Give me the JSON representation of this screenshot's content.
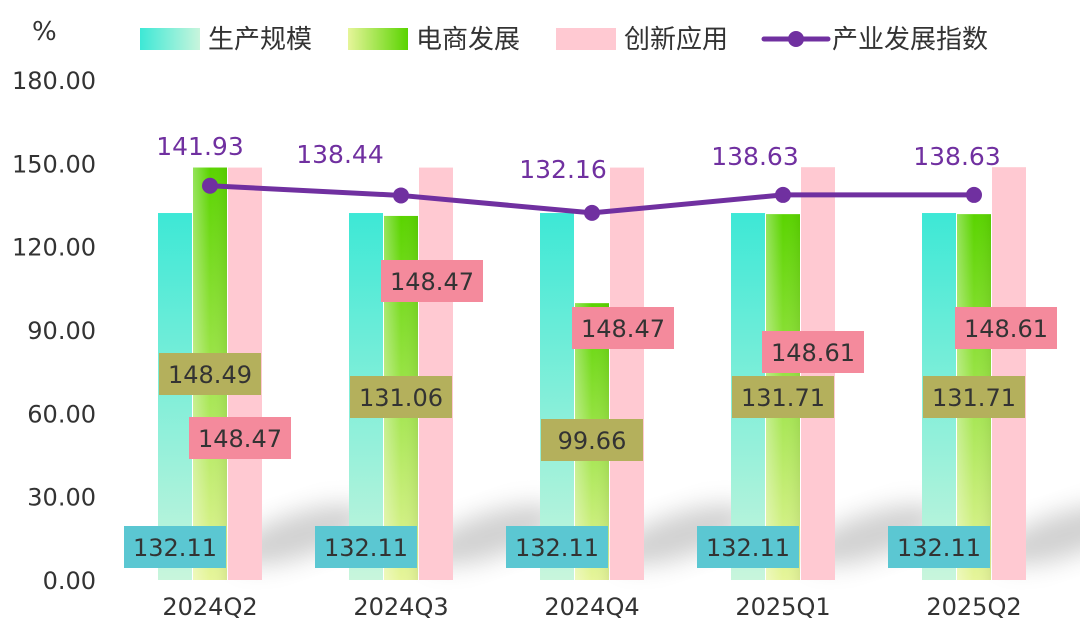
{
  "chart_data": {
    "type": "bar",
    "unit": "%",
    "categories": [
      "2024Q2",
      "2024Q3",
      "2024Q4",
      "2025Q1",
      "2025Q2"
    ],
    "ylim": [
      0,
      180
    ],
    "yticks": [
      "0.00",
      "30.00",
      "60.00",
      "90.00",
      "120.00",
      "150.00",
      "180.00"
    ],
    "legend_position": "top",
    "series": [
      {
        "name": "生产规模",
        "kind": "bar",
        "color_top": "#3de8d6",
        "color_bottom": "#c8f5dc",
        "label_bg": "#5bc7d2",
        "values": [
          132.11,
          132.11,
          132.11,
          132.11,
          132.11
        ],
        "labels": [
          "132.11",
          "132.11",
          "132.11",
          "132.11",
          "132.11"
        ]
      },
      {
        "name": "电商发展",
        "kind": "bar",
        "color_top": "#5ad400",
        "color_bottom": "#e6f59a",
        "label_bg": "#b4b05c",
        "values": [
          148.49,
          131.06,
          99.66,
          131.71,
          131.71
        ],
        "labels": [
          "148.49",
          "131.06",
          "99.66",
          "131.71",
          "131.71"
        ]
      },
      {
        "name": "创新应用",
        "kind": "bar",
        "color_top": "#ffc9d2",
        "color_bottom": "#ffc9d2",
        "label_bg": "#f48a9c",
        "values": [
          148.47,
          148.47,
          148.47,
          148.61,
          148.61
        ],
        "labels": [
          "148.47",
          "148.47",
          "148.47",
          "148.61",
          "148.61"
        ]
      },
      {
        "name": "产业发展指数",
        "kind": "line",
        "color": "#7030a0",
        "values": [
          141.93,
          138.44,
          132.16,
          138.63,
          138.63
        ],
        "labels": [
          "141.93",
          "138.44",
          "132.16",
          "138.63",
          "138.63"
        ]
      }
    ]
  }
}
